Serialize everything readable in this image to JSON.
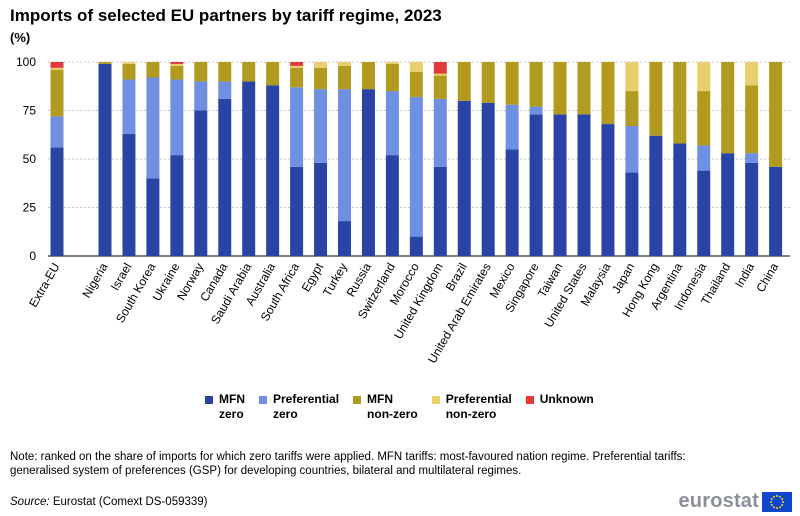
{
  "header": {
    "title": "Imports of selected EU partners by tariff regime, 2023",
    "unit": "(%)"
  },
  "colors": {
    "mfn_zero": "#2a44a6",
    "pref_zero": "#6f8fe2",
    "mfn_nonzero": "#b29a1e",
    "pref_nonzero": "#e8cf6c",
    "unknown": "#e2393c"
  },
  "legend": [
    {
      "label": "MFN\nzero",
      "color": "#2a44a6"
    },
    {
      "label": "Preferential\nzero",
      "color": "#6f8fe2"
    },
    {
      "label": "MFN\nnon-zero",
      "color": "#b29a1e"
    },
    {
      "label": "Preferential\nnon-zero",
      "color": "#e8cf6c"
    },
    {
      "label": "Unknown",
      "color": "#e2393c"
    }
  ],
  "chart_data": {
    "type": "bar",
    "stacked": true,
    "title": "Imports of selected EU partners by tariff regime, 2023",
    "ylabel": "(%)",
    "ylim": [
      0,
      100
    ],
    "yticks": [
      0,
      25,
      50,
      75,
      100
    ],
    "categories": [
      "Extra-EU",
      "Nigeria",
      "Israel",
      "South Korea",
      "Ukraine",
      "Norway",
      "Canada",
      "Saudi Arabia",
      "Australia",
      "South Africa",
      "Egypt",
      "Turkey",
      "Russia",
      "Switzerland",
      "Morocco",
      "United Kingdom",
      "Brazil",
      "United Arab Emirates",
      "Mexico",
      "Singapore",
      "Taiwan",
      "United States",
      "Malaysia",
      "Japan",
      "Hong Kong",
      "Argentina",
      "Indonesia",
      "Thailand",
      "India",
      "China"
    ],
    "series": [
      {
        "name": "MFN zero",
        "values": [
          56,
          99,
          63,
          40,
          52,
          75,
          81,
          90,
          88,
          46,
          48,
          18,
          86,
          52,
          10,
          46,
          80,
          79,
          55,
          73,
          73,
          73,
          68,
          43,
          62,
          58,
          44,
          53,
          48,
          46
        ]
      },
      {
        "name": "Preferential zero",
        "values": [
          16,
          0,
          28,
          52,
          39,
          15,
          9,
          0,
          0,
          41,
          38,
          68,
          0,
          33,
          72,
          35,
          0,
          0,
          23,
          4,
          0,
          0,
          0,
          24,
          0,
          0,
          13,
          0,
          5,
          0
        ]
      },
      {
        "name": "MFN non-zero",
        "values": [
          24,
          1,
          8,
          8,
          7,
          10,
          10,
          10,
          12,
          10,
          11,
          12,
          14,
          14,
          13,
          12,
          20,
          21,
          22,
          23,
          27,
          27,
          32,
          18,
          38,
          42,
          28,
          47,
          35,
          54
        ]
      },
      {
        "name": "Preferential non-zero",
        "values": [
          1,
          0,
          1,
          0,
          1,
          0,
          0,
          0,
          0,
          1,
          3,
          2,
          0,
          1,
          5,
          1,
          0,
          0,
          0,
          0,
          0,
          0,
          0,
          15,
          0,
          0,
          15,
          0,
          12,
          0
        ]
      },
      {
        "name": "Unknown",
        "values": [
          3,
          0,
          0,
          0,
          1,
          0,
          0,
          0,
          0,
          2,
          0,
          0,
          0,
          0,
          0,
          6,
          0,
          0,
          0,
          0,
          0,
          0,
          0,
          0,
          0,
          0,
          0,
          0,
          0,
          0
        ]
      }
    ]
  },
  "footer": {
    "note": "Note: ranked on the share of imports for which zero tariffs were applied. MFN tariffs: most-favoured nation regime. Preferential tariffs: generalised system of preferences (GSP) for developing countries, bilateral and multilateral regimes.",
    "source_label": "Source:",
    "source_text": " Eurostat (Comext DS-059339)",
    "logo_text": "eurostat"
  }
}
